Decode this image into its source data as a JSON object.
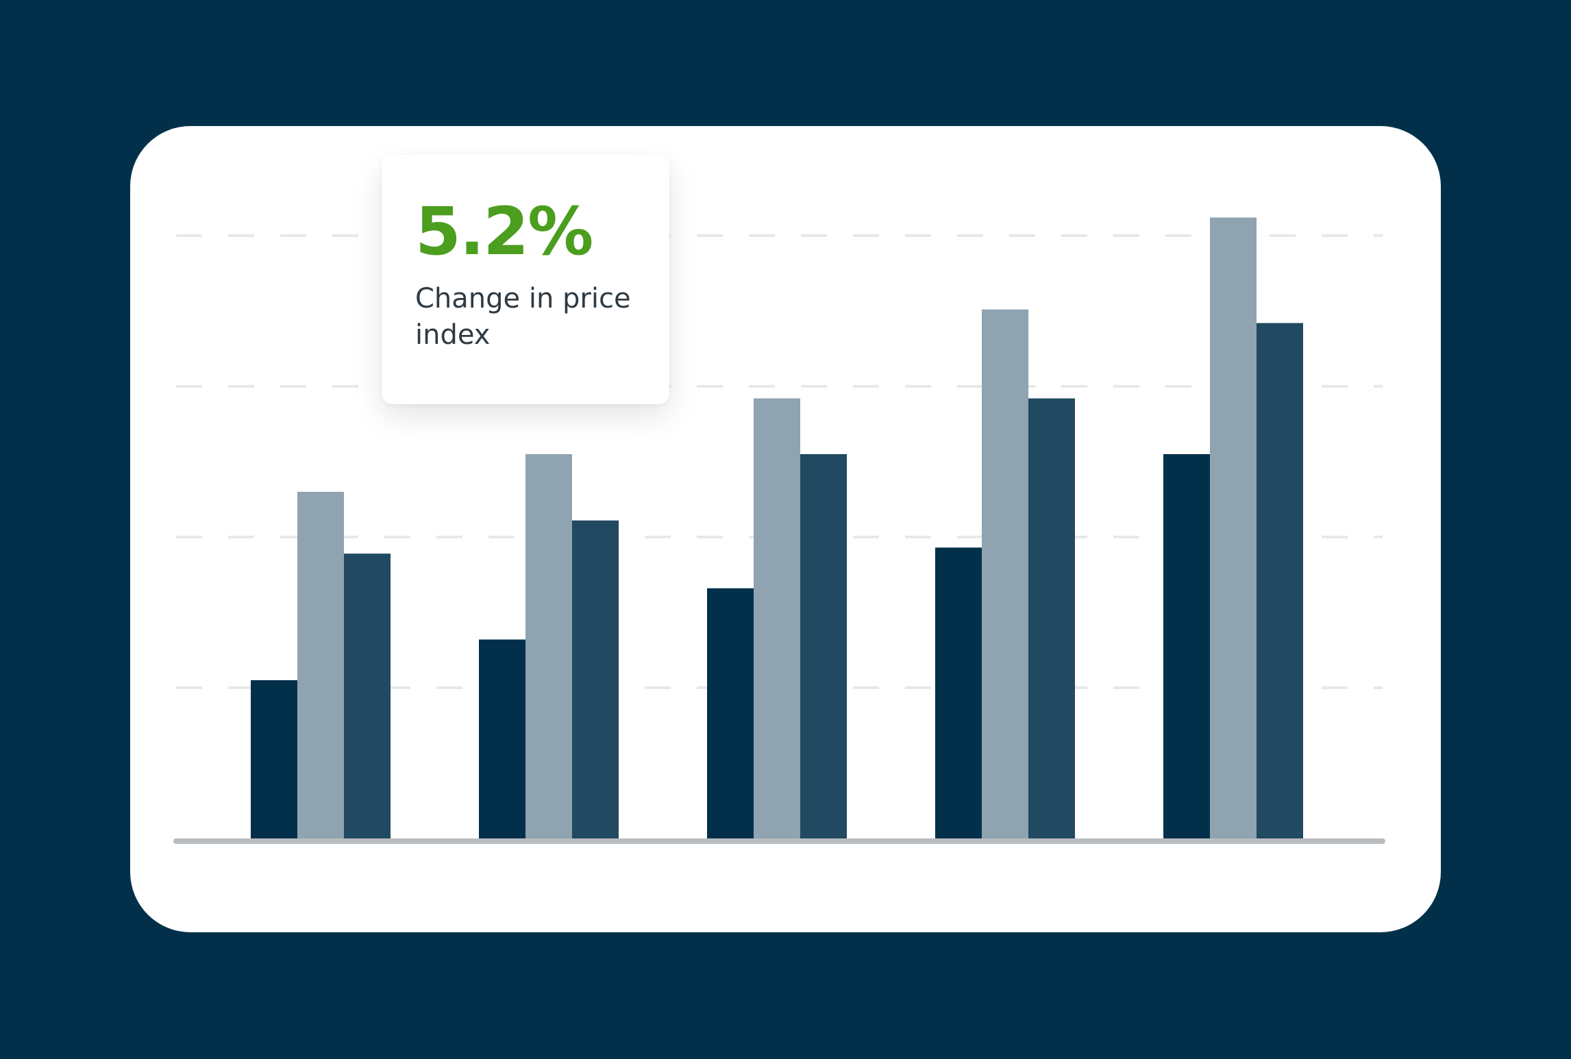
{
  "callout": {
    "value": "5.2%",
    "label": "Change in price index",
    "value_color": "#4b9e1e"
  },
  "colors": {
    "background": "#02304a",
    "card": "#ffffff",
    "gridline": "#e6e8ea",
    "baseline": "#b9bcbf"
  },
  "chart_data": {
    "type": "bar",
    "title": "",
    "xlabel": "",
    "ylabel": "",
    "categories": [
      "",
      "",
      "",
      "",
      ""
    ],
    "ylim": [
      0,
      4
    ],
    "grid": true,
    "gridlines_y": [
      1,
      2,
      3,
      4
    ],
    "legend": "none",
    "series": [
      {
        "color": "#02304a",
        "values": [
          1.05,
          1.32,
          1.66,
          1.93,
          2.55
        ]
      },
      {
        "color": "#8fa3b0",
        "values": [
          2.3,
          2.55,
          2.92,
          3.51,
          4.12
        ]
      },
      {
        "color": "#214961",
        "values": [
          1.89,
          2.11,
          2.55,
          2.92,
          3.42
        ]
      }
    ]
  }
}
